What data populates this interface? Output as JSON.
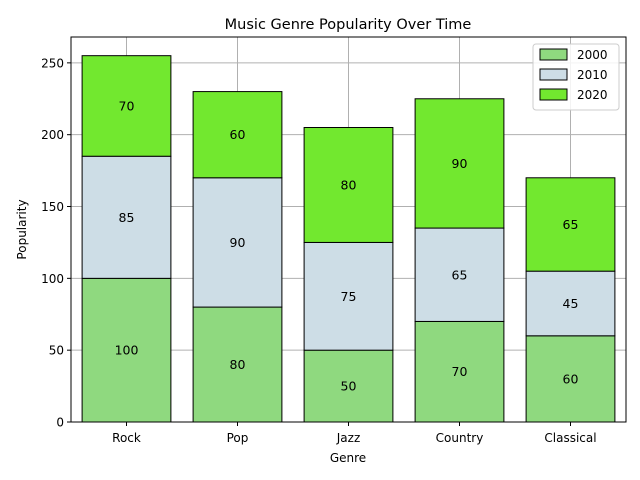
{
  "chart_data": {
    "type": "bar",
    "stacked": true,
    "title": "Music Genre Popularity Over Time",
    "xlabel": "Genre",
    "ylabel": "Popularity",
    "categories": [
      "Rock",
      "Pop",
      "Jazz",
      "Country",
      "Classical"
    ],
    "series": [
      {
        "name": "2000",
        "values": [
          100,
          80,
          50,
          70,
          60
        ],
        "color": "#8fd97f"
      },
      {
        "name": "2010",
        "values": [
          85,
          90,
          75,
          65,
          45
        ],
        "color": "#cddde6"
      },
      {
        "name": "2020",
        "values": [
          70,
          60,
          80,
          90,
          65
        ],
        "color": "#72e82f"
      }
    ],
    "ylim": [
      0,
      268
    ],
    "yticks": [
      0,
      50,
      100,
      150,
      200,
      250
    ],
    "grid": true,
    "legend_position": "top-right"
  }
}
